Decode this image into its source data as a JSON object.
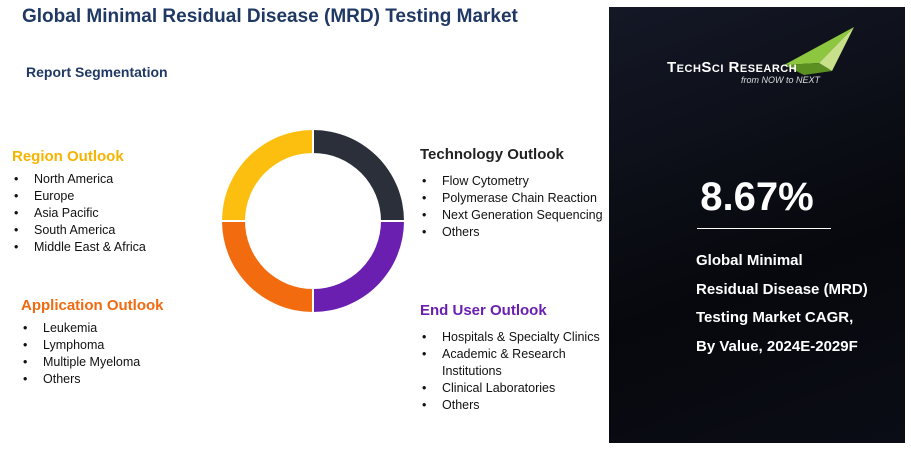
{
  "title": "Global Minimal Residual Disease (MRD) Testing Market",
  "subtitle": "Report Segmentation",
  "segments": [
    {
      "title": "Region Outlook",
      "items": [
        "North America",
        "Europe",
        "Asia Pacific",
        "South America",
        "Middle East & Africa"
      ]
    },
    {
      "title": "Technology Outlook",
      "items": [
        "Flow Cytometry",
        "Polymerase Chain Reaction",
        "Next Generation Sequencing",
        "Others"
      ]
    },
    {
      "title": "Application Outlook",
      "items": [
        "Leukemia",
        "Lymphoma",
        "Multiple Myeloma",
        "Others"
      ]
    },
    {
      "title": "End User Outlook",
      "items": [
        "Hospitals & Specialty Clinics",
        "Academic & Research Institutions",
        "Clinical Laboratories",
        "Others"
      ]
    }
  ],
  "logo": {
    "name": "TechSci Research",
    "tagline": "from NOW to NEXT"
  },
  "cagr": {
    "value": "8.67%",
    "description": [
      "Global Minimal",
      "Residual Disease (MRD)",
      "Testing Market CAGR,",
      "By Value, 2024E-2029F"
    ]
  }
}
